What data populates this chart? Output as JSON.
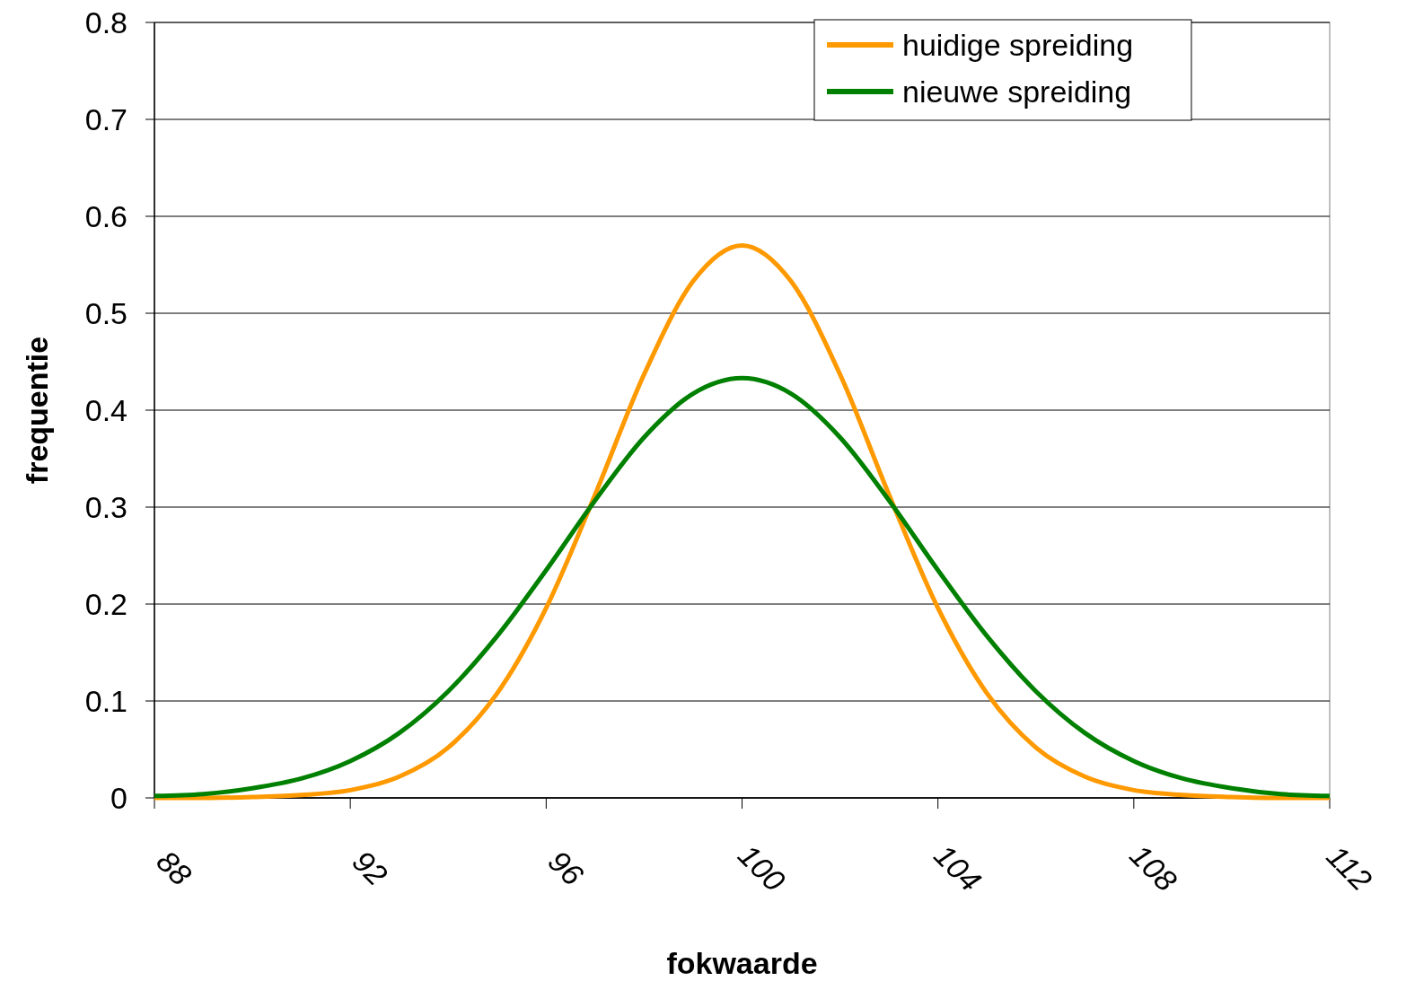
{
  "chart_data": {
    "type": "line",
    "xlabel": "fokwaarde",
    "ylabel": "frequentie",
    "x": [
      88,
      89,
      90,
      91,
      92,
      93,
      94,
      95,
      96,
      97,
      98,
      99,
      100,
      101,
      102,
      103,
      104,
      105,
      106,
      107,
      108,
      109,
      110,
      111,
      112
    ],
    "series": [
      {
        "name": "huidige spreiding",
        "color": "#ff9900",
        "values": [
          0,
          0,
          0.001,
          0.003,
          0.008,
          0.022,
          0.052,
          0.108,
          0.196,
          0.313,
          0.437,
          0.533,
          0.57,
          0.533,
          0.437,
          0.313,
          0.196,
          0.108,
          0.052,
          0.022,
          0.008,
          0.003,
          0.001,
          0,
          0
        ]
      },
      {
        "name": "nieuwe spreiding",
        "color": "#008000",
        "values": [
          0.002,
          0.004,
          0.01,
          0.02,
          0.038,
          0.067,
          0.11,
          0.167,
          0.235,
          0.307,
          0.372,
          0.417,
          0.433,
          0.417,
          0.372,
          0.307,
          0.235,
          0.167,
          0.11,
          0.067,
          0.038,
          0.02,
          0.01,
          0.004,
          0.002
        ]
      }
    ],
    "xlim": [
      88,
      112
    ],
    "xticks": [
      88,
      92,
      96,
      100,
      104,
      108,
      112
    ],
    "ylim": [
      0,
      0.8
    ],
    "yticks": [
      0,
      0.1,
      0.2,
      0.3,
      0.4,
      0.5,
      0.6,
      0.7,
      0.8
    ],
    "grid": "y",
    "legend": "top right",
    "marker": "none",
    "line_style": "solid"
  }
}
